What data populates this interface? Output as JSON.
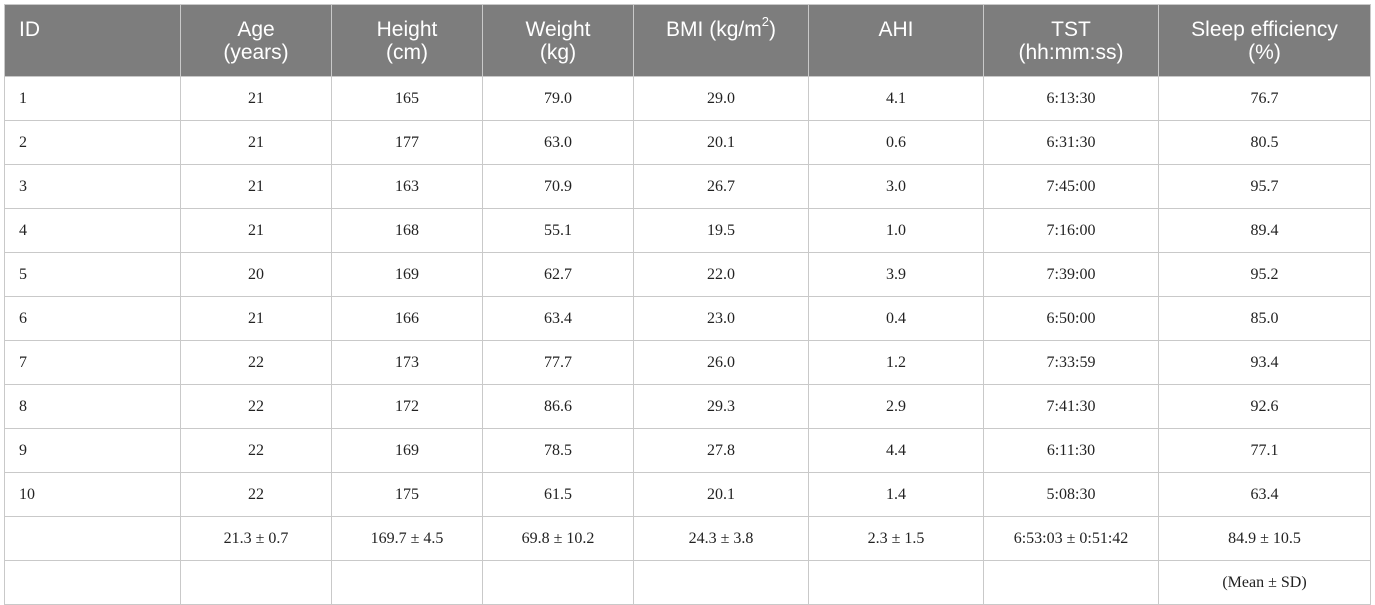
{
  "table": {
    "headers": [
      {
        "line1": "ID",
        "line2": ""
      },
      {
        "line1": "Age",
        "line2": "(years)"
      },
      {
        "line1": "Height",
        "line2": "(cm)"
      },
      {
        "line1": "Weight",
        "line2": "(kg)"
      },
      {
        "line1": "BMI (kg/m",
        "sup": "2",
        "line1_end": ")",
        "line2": ""
      },
      {
        "line1": "AHI",
        "line2": ""
      },
      {
        "line1": "TST",
        "line2": "(hh:mm:ss)"
      },
      {
        "line1": "Sleep efficiency",
        "line2": "(%)"
      }
    ],
    "rows": [
      [
        "1",
        "21",
        "165",
        "79.0",
        "29.0",
        "4.1",
        "6:13:30",
        "76.7"
      ],
      [
        "2",
        "21",
        "177",
        "63.0",
        "20.1",
        "0.6",
        "6:31:30",
        "80.5"
      ],
      [
        "3",
        "21",
        "163",
        "70.9",
        "26.7",
        "3.0",
        "7:45:00",
        "95.7"
      ],
      [
        "4",
        "21",
        "168",
        "55.1",
        "19.5",
        "1.0",
        "7:16:00",
        "89.4"
      ],
      [
        "5",
        "20",
        "169",
        "62.7",
        "22.0",
        "3.9",
        "7:39:00",
        "95.2"
      ],
      [
        "6",
        "21",
        "166",
        "63.4",
        "23.0",
        "0.4",
        "6:50:00",
        "85.0"
      ],
      [
        "7",
        "22",
        "173",
        "77.7",
        "26.0",
        "1.2",
        "7:33:59",
        "93.4"
      ],
      [
        "8",
        "22",
        "172",
        "86.6",
        "29.3",
        "2.9",
        "7:41:30",
        "92.6"
      ],
      [
        "9",
        "22",
        "169",
        "78.5",
        "27.8",
        "4.4",
        "6:11:30",
        "77.1"
      ],
      [
        "10",
        "22",
        "175",
        "61.5",
        "20.1",
        "1.4",
        "5:08:30",
        "63.4"
      ]
    ],
    "summary_row": [
      "",
      "21.3 ± 0.7",
      "169.7 ± 4.5",
      "69.8 ± 10.2",
      "24.3 ± 3.8",
      "2.3 ± 1.5",
      "6:53:03 ± 0:51:42",
      "84.9 ± 10.5"
    ],
    "note_row": [
      "",
      "",
      "",
      "",
      "",
      "",
      "",
      "(Mean ± SD)"
    ]
  }
}
